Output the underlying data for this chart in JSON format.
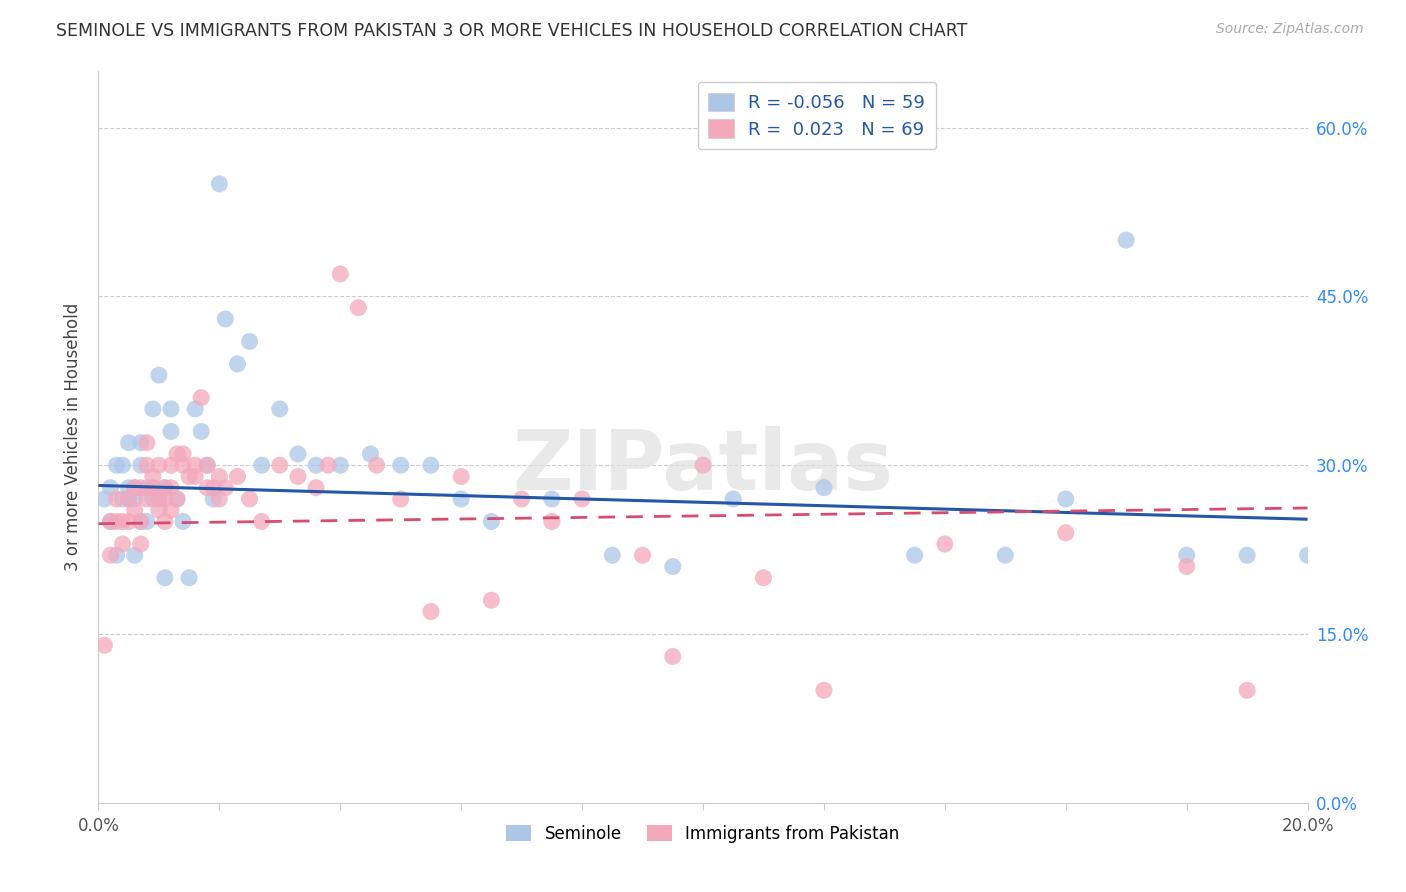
{
  "title": "SEMINOLE VS IMMIGRANTS FROM PAKISTAN 3 OR MORE VEHICLES IN HOUSEHOLD CORRELATION CHART",
  "source": "Source: ZipAtlas.com",
  "ylabel": "3 or more Vehicles in Household",
  "xlim": [
    0.0,
    0.2
  ],
  "ylim": [
    0.0,
    0.65
  ],
  "legend_label1": "Seminole",
  "legend_label2": "Immigrants from Pakistan",
  "R1": -0.056,
  "N1": 59,
  "R2": 0.023,
  "N2": 69,
  "color_blue": "#adc6e8",
  "color_pink": "#f4a8bc",
  "line_color_blue": "#2457a8",
  "line_color_pink": "#d84c6f",
  "watermark": "ZIPatlas",
  "seminole_x": [
    0.001,
    0.002,
    0.002,
    0.003,
    0.003,
    0.004,
    0.004,
    0.005,
    0.005,
    0.005,
    0.006,
    0.006,
    0.006,
    0.007,
    0.007,
    0.007,
    0.008,
    0.008,
    0.009,
    0.009,
    0.01,
    0.01,
    0.011,
    0.011,
    0.012,
    0.012,
    0.013,
    0.014,
    0.015,
    0.016,
    0.017,
    0.018,
    0.019,
    0.02,
    0.021,
    0.023,
    0.025,
    0.027,
    0.03,
    0.033,
    0.036,
    0.04,
    0.045,
    0.05,
    0.055,
    0.06,
    0.065,
    0.075,
    0.085,
    0.095,
    0.105,
    0.12,
    0.135,
    0.15,
    0.16,
    0.17,
    0.18,
    0.19,
    0.2
  ],
  "seminole_y": [
    0.27,
    0.28,
    0.25,
    0.3,
    0.22,
    0.27,
    0.3,
    0.27,
    0.28,
    0.32,
    0.27,
    0.28,
    0.22,
    0.25,
    0.3,
    0.32,
    0.28,
    0.25,
    0.35,
    0.27,
    0.38,
    0.27,
    0.28,
    0.2,
    0.35,
    0.33,
    0.27,
    0.25,
    0.2,
    0.35,
    0.33,
    0.3,
    0.27,
    0.55,
    0.43,
    0.39,
    0.41,
    0.3,
    0.35,
    0.31,
    0.3,
    0.3,
    0.31,
    0.3,
    0.3,
    0.27,
    0.25,
    0.27,
    0.22,
    0.21,
    0.27,
    0.28,
    0.22,
    0.22,
    0.27,
    0.5,
    0.22,
    0.22,
    0.22
  ],
  "pakistan_x": [
    0.001,
    0.002,
    0.002,
    0.003,
    0.003,
    0.004,
    0.004,
    0.005,
    0.005,
    0.006,
    0.006,
    0.007,
    0.007,
    0.007,
    0.008,
    0.008,
    0.009,
    0.009,
    0.01,
    0.01,
    0.011,
    0.011,
    0.011,
    0.012,
    0.012,
    0.013,
    0.013,
    0.014,
    0.015,
    0.016,
    0.017,
    0.018,
    0.019,
    0.02,
    0.021,
    0.023,
    0.025,
    0.027,
    0.03,
    0.033,
    0.036,
    0.038,
    0.04,
    0.043,
    0.046,
    0.05,
    0.055,
    0.06,
    0.065,
    0.07,
    0.075,
    0.08,
    0.09,
    0.095,
    0.1,
    0.11,
    0.12,
    0.14,
    0.16,
    0.18,
    0.19,
    0.008,
    0.009,
    0.01,
    0.012,
    0.014,
    0.016,
    0.018,
    0.02
  ],
  "pakistan_y": [
    0.14,
    0.25,
    0.22,
    0.25,
    0.27,
    0.23,
    0.25,
    0.27,
    0.25,
    0.28,
    0.26,
    0.25,
    0.28,
    0.23,
    0.27,
    0.3,
    0.28,
    0.29,
    0.26,
    0.3,
    0.27,
    0.28,
    0.25,
    0.3,
    0.26,
    0.31,
    0.27,
    0.31,
    0.29,
    0.3,
    0.36,
    0.3,
    0.28,
    0.29,
    0.28,
    0.29,
    0.27,
    0.25,
    0.3,
    0.29,
    0.28,
    0.3,
    0.47,
    0.44,
    0.3,
    0.27,
    0.17,
    0.29,
    0.18,
    0.27,
    0.25,
    0.27,
    0.22,
    0.13,
    0.3,
    0.2,
    0.1,
    0.23,
    0.24,
    0.21,
    0.1,
    0.32,
    0.28,
    0.27,
    0.28,
    0.3,
    0.29,
    0.28,
    0.27
  ]
}
